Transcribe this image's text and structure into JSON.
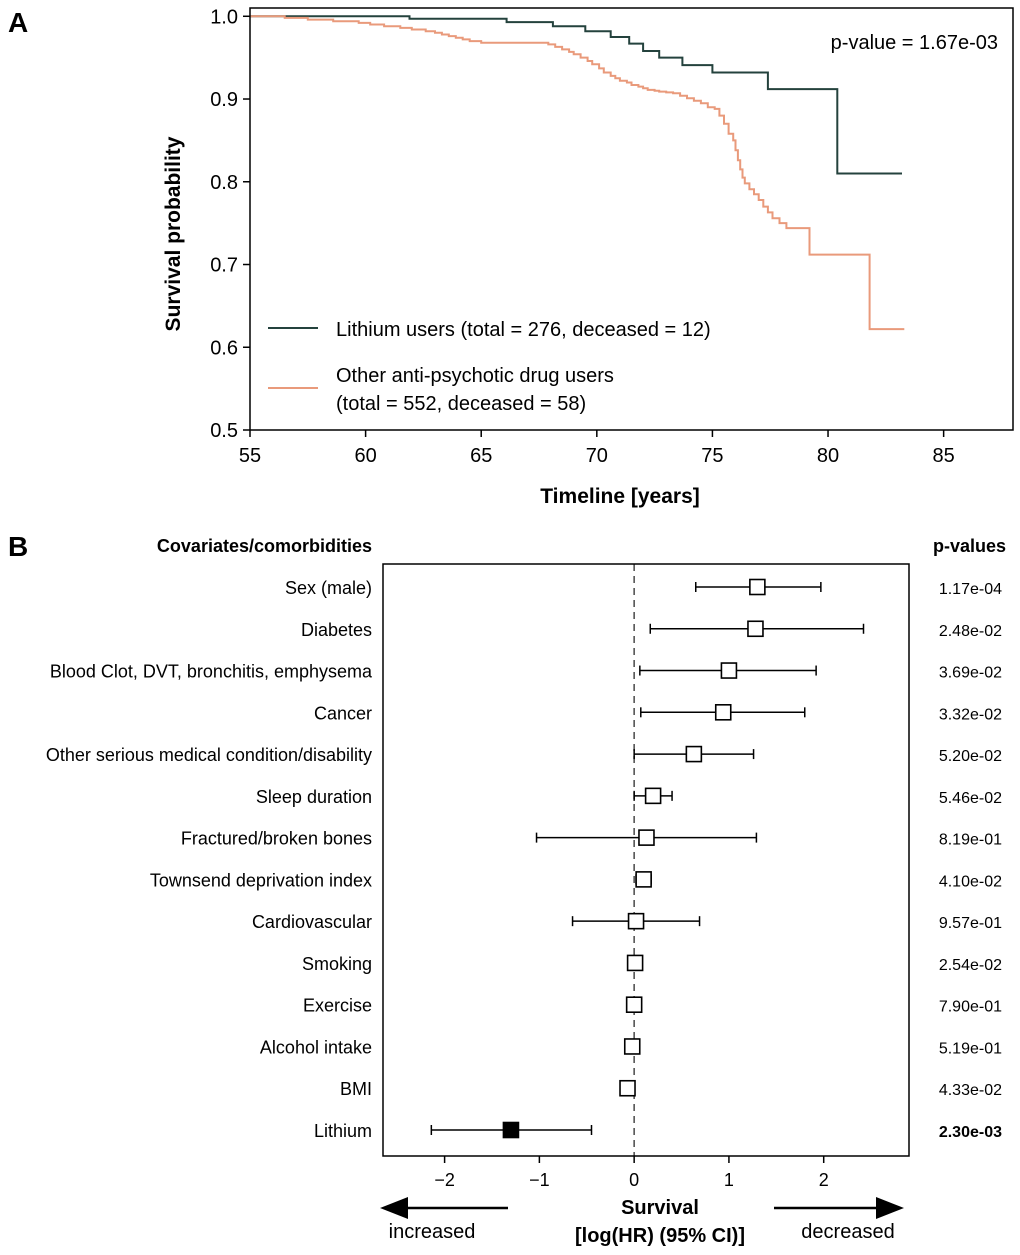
{
  "chart_data": [
    {
      "panel": "A",
      "type": "line",
      "subtype": "kaplan-meier",
      "xlabel": "Timeline [years]",
      "ylabel": "Survival probability",
      "xlim": [
        55,
        88
      ],
      "ylim": [
        0.5,
        1.01
      ],
      "xticks": [
        55,
        60,
        65,
        70,
        75,
        80,
        85
      ],
      "yticks": [
        0.5,
        0.6,
        0.7,
        0.8,
        0.9,
        1.0
      ],
      "xtick_labels": [
        "55",
        "60",
        "65",
        "70",
        "75",
        "80",
        "85"
      ],
      "ytick_labels": [
        "0.5",
        "0.6",
        "0.7",
        "0.8",
        "0.9",
        "1.0"
      ],
      "annotation": "p-value = 1.67e-03",
      "legend": {
        "placement": "bottom-left"
      },
      "series": [
        {
          "name": "Lithium users (total = 276, deceased = 12)",
          "color": "#24423d",
          "x": [
            55.8,
            61.9,
            66.1,
            68.1,
            69.5,
            70.6,
            71.4,
            72.0,
            72.7,
            73.7,
            75.0,
            77.4,
            80.4,
            83.2
          ],
          "y": [
            1.0,
            0.997,
            0.993,
            0.988,
            0.982,
            0.975,
            0.967,
            0.958,
            0.95,
            0.941,
            0.932,
            0.912,
            0.81,
            0.81
          ]
        },
        {
          "name": "Other anti-psychotic drug users",
          "name_line2": "(total = 552, deceased = 58)",
          "color": "#e99a7b",
          "x": [
            55.0,
            56.5,
            57.5,
            58.6,
            59.7,
            60.2,
            60.8,
            61.5,
            62.0,
            62.6,
            63.0,
            63.3,
            63.6,
            63.9,
            64.2,
            64.5,
            65.0,
            67.9,
            68.2,
            68.5,
            68.8,
            69.0,
            69.3,
            69.6,
            69.8,
            70.1,
            70.3,
            70.6,
            70.8,
            71.0,
            71.3,
            71.5,
            71.8,
            72.0,
            72.2,
            72.5,
            72.7,
            73.0,
            73.3,
            73.6,
            73.9,
            74.2,
            74.5,
            74.8,
            75.1,
            75.3,
            75.5,
            75.7,
            75.9,
            76.0,
            76.1,
            76.2,
            76.3,
            76.4,
            76.6,
            76.8,
            77.0,
            77.2,
            77.4,
            77.6,
            77.9,
            78.2,
            78.5,
            79.1,
            79.2,
            81.7,
            81.8,
            83.3
          ],
          "y": [
            1.0,
            0.998,
            0.996,
            0.994,
            0.992,
            0.99,
            0.988,
            0.986,
            0.984,
            0.982,
            0.98,
            0.978,
            0.976,
            0.974,
            0.972,
            0.97,
            0.968,
            0.966,
            0.963,
            0.96,
            0.957,
            0.954,
            0.95,
            0.946,
            0.942,
            0.937,
            0.932,
            0.928,
            0.925,
            0.922,
            0.92,
            0.917,
            0.915,
            0.913,
            0.911,
            0.91,
            0.909,
            0.908,
            0.907,
            0.904,
            0.901,
            0.898,
            0.895,
            0.89,
            0.888,
            0.88,
            0.87,
            0.858,
            0.85,
            0.838,
            0.826,
            0.815,
            0.805,
            0.798,
            0.791,
            0.785,
            0.778,
            0.77,
            0.763,
            0.756,
            0.75,
            0.744,
            0.744,
            0.744,
            0.712,
            0.712,
            0.622,
            0.622
          ]
        }
      ]
    },
    {
      "panel": "B",
      "type": "forest",
      "title_left": "Covariates/comorbidities",
      "title_right": "p-values",
      "xlabel": "Survival",
      "xlabel_line2": "[log(HR) (95% CI)]",
      "xlim": [
        -2.65,
        2.9
      ],
      "xticks": [
        -2,
        -1,
        0,
        1,
        2
      ],
      "xtick_labels": [
        "−2",
        "−1",
        "0",
        "1",
        "2"
      ],
      "reference_line": 0,
      "arrow_left_label": "increased",
      "arrow_right_label": "decreased",
      "rows": [
        {
          "label": "Sex (male)",
          "value": 1.3,
          "low": 0.65,
          "high": 1.97,
          "p": "1.17e-04"
        },
        {
          "label": "Diabetes",
          "value": 1.28,
          "low": 0.17,
          "high": 2.42,
          "p": "2.48e-02"
        },
        {
          "label": "Blood Clot, DVT, bronchitis, emphysema",
          "value": 1.0,
          "low": 0.06,
          "high": 1.92,
          "p": "3.69e-02"
        },
        {
          "label": "Cancer",
          "value": 0.94,
          "low": 0.07,
          "high": 1.8,
          "p": "3.32e-02"
        },
        {
          "label": "Other serious medical condition/disability",
          "value": 0.63,
          "low": 0.0,
          "high": 1.26,
          "p": "5.20e-02"
        },
        {
          "label": "Sleep duration",
          "value": 0.2,
          "low": 0.0,
          "high": 0.4,
          "p": "5.46e-02"
        },
        {
          "label": "Fractured/broken bones",
          "value": 0.13,
          "low": -1.03,
          "high": 1.29,
          "p": "8.19e-01"
        },
        {
          "label": "Townsend deprivation index",
          "value": 0.1,
          "low": 0.02,
          "high": 0.18,
          "p": "4.10e-02"
        },
        {
          "label": "Cardiovascular",
          "value": 0.02,
          "low": -0.65,
          "high": 0.69,
          "p": "9.57e-01"
        },
        {
          "label": "Smoking",
          "value": 0.01,
          "low": -0.03,
          "high": 0.05,
          "p": "2.54e-02"
        },
        {
          "label": "Exercise",
          "value": 0.0,
          "low": -0.03,
          "high": 0.03,
          "p": "7.90e-01"
        },
        {
          "label": "Alcohol intake",
          "value": -0.02,
          "low": -0.06,
          "high": 0.02,
          "p": "5.19e-01"
        },
        {
          "label": "BMI",
          "value": -0.07,
          "low": -0.1,
          "high": -0.04,
          "p": "4.33e-02"
        },
        {
          "label": "Lithium",
          "value": -1.3,
          "low": -2.14,
          "high": -0.45,
          "p": "2.30e-03",
          "highlight": true
        }
      ]
    }
  ],
  "panel_labels": [
    "A",
    "B"
  ]
}
